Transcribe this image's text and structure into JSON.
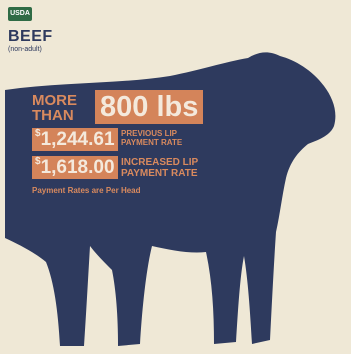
{
  "logo": "USDA",
  "title": "BEEF",
  "subtitle": "(non-adult)",
  "weight": {
    "prefix": [
      "MORE",
      "THAN"
    ],
    "amount": "800 lbs"
  },
  "rates": [
    {
      "currency": "$",
      "amount": "1,244.61",
      "label": [
        "PREVIOUS LIP",
        "PAYMENT RATE"
      ]
    },
    {
      "currency": "$",
      "amount": "1,618.00",
      "label": [
        "INCREASED LIP",
        "PAYMENT RATE"
      ]
    }
  ],
  "note": "Payment Rates are Per Head"
}
